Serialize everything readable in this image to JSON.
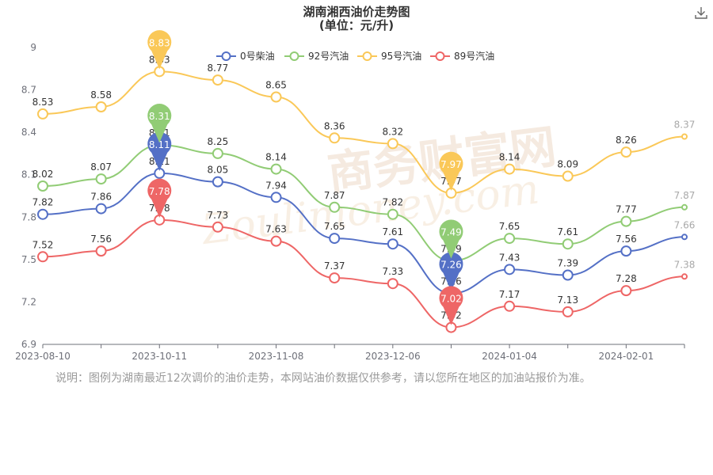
{
  "title": "湖南湘西油价走势图",
  "subtitle": "(单位：元/升)",
  "note": "说明：图例为湖南最近12次调价的油价走势，本网站油价数据仅供参考，请以您所在地区的加油站报价为准。",
  "watermark": {
    "cn": "商务财富网",
    "en": "Zoulimoney.com"
  },
  "toolbar": {
    "download_icon": "download-icon"
  },
  "chart_data": {
    "type": "line",
    "title": "湖南湘西油价走势图",
    "subtitle": "(单位：元/升)",
    "xlabel": "",
    "ylabel": "",
    "ylim": [
      6.9,
      9
    ],
    "yticks": [
      6.9,
      7.2,
      7.5,
      7.8,
      8.1,
      8.4,
      8.7,
      9
    ],
    "ytick_labels": [
      "6.9",
      "7.2",
      "7.5",
      "7.8",
      "8.1",
      "8.4",
      "8.7",
      "9"
    ],
    "x_tick_labels": [
      "2023-08-10",
      "2023-10-11",
      "2023-11-08",
      "2023-12-06",
      "2024-01-04",
      "2024-02-01"
    ],
    "x_tick_index": [
      0,
      2,
      4,
      6,
      8,
      10
    ],
    "x_count": 12,
    "grid": false,
    "legend_position": "top",
    "smooth": true,
    "series": [
      {
        "name": "0号柴油",
        "color": "#5470c6",
        "values": [
          7.82,
          7.86,
          8.11,
          8.05,
          7.94,
          7.65,
          7.61,
          7.26,
          7.43,
          7.39,
          7.56,
          7.66
        ],
        "max_index": 2,
        "min_index": 7
      },
      {
        "name": "92号汽油",
        "color": "#91cc75",
        "values": [
          8.02,
          8.07,
          8.31,
          8.25,
          8.14,
          7.87,
          7.82,
          7.49,
          7.65,
          7.61,
          7.77,
          7.87
        ],
        "max_index": 2,
        "min_index": 7
      },
      {
        "name": "95号汽油",
        "color": "#fac858",
        "values": [
          8.53,
          8.58,
          8.83,
          8.77,
          8.65,
          8.36,
          8.32,
          7.97,
          8.14,
          8.09,
          8.26,
          8.37
        ],
        "max_index": 2,
        "min_index": 7
      },
      {
        "name": "89号汽油",
        "color": "#ee6666",
        "values": [
          7.52,
          7.56,
          7.78,
          7.73,
          7.63,
          7.37,
          7.33,
          7.02,
          7.17,
          7.13,
          7.28,
          7.38
        ],
        "max_index": 2,
        "min_index": 7
      }
    ]
  }
}
